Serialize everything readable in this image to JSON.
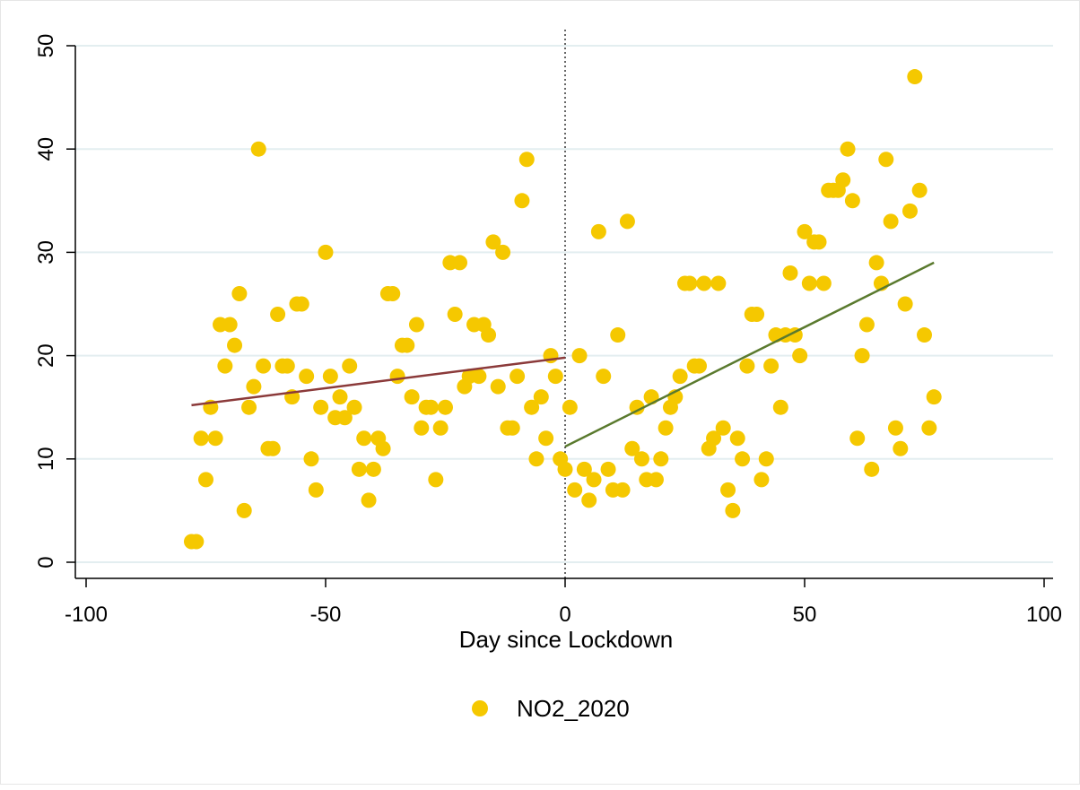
{
  "chart_data": {
    "type": "scatter",
    "title": "",
    "xlabel": "Day since Lockdown",
    "ylabel": "",
    "xlim": [
      -100,
      100
    ],
    "ylim": [
      0,
      50
    ],
    "xticks": [
      -100,
      -50,
      0,
      50,
      100
    ],
    "yticks": [
      0,
      10,
      20,
      30,
      40,
      50
    ],
    "xtick_labels": [
      "-100",
      "-50",
      "0",
      "50",
      "100"
    ],
    "ytick_labels": [
      "0",
      "10",
      "20",
      "30",
      "40",
      "50"
    ],
    "grid": "horizontal",
    "legend_position": "bottom",
    "series": [
      {
        "name": "NO2_2020",
        "color": "#f5c800",
        "points": [
          [
            -78,
            2
          ],
          [
            -77,
            2
          ],
          [
            -76,
            12
          ],
          [
            -75,
            8
          ],
          [
            -74,
            15
          ],
          [
            -73,
            12
          ],
          [
            -72,
            23
          ],
          [
            -71,
            19
          ],
          [
            -70,
            23
          ],
          [
            -69,
            21
          ],
          [
            -68,
            26
          ],
          [
            -67,
            5
          ],
          [
            -66,
            15
          ],
          [
            -65,
            17
          ],
          [
            -64,
            40
          ],
          [
            -63,
            19
          ],
          [
            -62,
            11
          ],
          [
            -61,
            11
          ],
          [
            -60,
            24
          ],
          [
            -59,
            19
          ],
          [
            -58,
            19
          ],
          [
            -57,
            16
          ],
          [
            -56,
            25
          ],
          [
            -55,
            25
          ],
          [
            -54,
            18
          ],
          [
            -53,
            10
          ],
          [
            -52,
            7
          ],
          [
            -51,
            15
          ],
          [
            -50,
            30
          ],
          [
            -49,
            18
          ],
          [
            -48,
            14
          ],
          [
            -47,
            16
          ],
          [
            -46,
            14
          ],
          [
            -45,
            19
          ],
          [
            -44,
            15
          ],
          [
            -43,
            9
          ],
          [
            -42,
            12
          ],
          [
            -41,
            6
          ],
          [
            -40,
            9
          ],
          [
            -39,
            12
          ],
          [
            -38,
            11
          ],
          [
            -37,
            26
          ],
          [
            -36,
            26
          ],
          [
            -35,
            18
          ],
          [
            -34,
            21
          ],
          [
            -33,
            21
          ],
          [
            -32,
            16
          ],
          [
            -31,
            23
          ],
          [
            -30,
            13
          ],
          [
            -29,
            15
          ],
          [
            -28,
            15
          ],
          [
            -27,
            8
          ],
          [
            -26,
            13
          ],
          [
            -25,
            15
          ],
          [
            -24,
            29
          ],
          [
            -23,
            24
          ],
          [
            -22,
            29
          ],
          [
            -21,
            17
          ],
          [
            -20,
            18
          ],
          [
            -19,
            23
          ],
          [
            -18,
            18
          ],
          [
            -17,
            23
          ],
          [
            -16,
            22
          ],
          [
            -15,
            31
          ],
          [
            -14,
            17
          ],
          [
            -13,
            30
          ],
          [
            -12,
            13
          ],
          [
            -11,
            13
          ],
          [
            -10,
            18
          ],
          [
            -9,
            35
          ],
          [
            -8,
            39
          ],
          [
            -7,
            15
          ],
          [
            -6,
            10
          ],
          [
            -5,
            16
          ],
          [
            -4,
            12
          ],
          [
            -3,
            20
          ],
          [
            -2,
            18
          ],
          [
            -1,
            10
          ],
          [
            0,
            9
          ],
          [
            1,
            15
          ],
          [
            2,
            7
          ],
          [
            3,
            20
          ],
          [
            4,
            9
          ],
          [
            5,
            6
          ],
          [
            6,
            8
          ],
          [
            7,
            32
          ],
          [
            8,
            18
          ],
          [
            9,
            9
          ],
          [
            10,
            7
          ],
          [
            11,
            22
          ],
          [
            12,
            7
          ],
          [
            13,
            33
          ],
          [
            14,
            11
          ],
          [
            15,
            15
          ],
          [
            16,
            10
          ],
          [
            17,
            8
          ],
          [
            18,
            16
          ],
          [
            19,
            8
          ],
          [
            20,
            10
          ],
          [
            21,
            13
          ],
          [
            22,
            15
          ],
          [
            23,
            16
          ],
          [
            24,
            18
          ],
          [
            25,
            27
          ],
          [
            26,
            27
          ],
          [
            27,
            19
          ],
          [
            28,
            19
          ],
          [
            29,
            27
          ],
          [
            30,
            11
          ],
          [
            31,
            12
          ],
          [
            32,
            27
          ],
          [
            33,
            13
          ],
          [
            34,
            7
          ],
          [
            35,
            5
          ],
          [
            36,
            12
          ],
          [
            37,
            10
          ],
          [
            38,
            19
          ],
          [
            39,
            24
          ],
          [
            40,
            24
          ],
          [
            41,
            8
          ],
          [
            42,
            10
          ],
          [
            43,
            19
          ],
          [
            44,
            22
          ],
          [
            45,
            15
          ],
          [
            46,
            22
          ],
          [
            47,
            28
          ],
          [
            48,
            22
          ],
          [
            49,
            20
          ],
          [
            50,
            32
          ],
          [
            51,
            27
          ],
          [
            52,
            31
          ],
          [
            53,
            31
          ],
          [
            54,
            27
          ],
          [
            55,
            36
          ],
          [
            56,
            36
          ],
          [
            57,
            36
          ],
          [
            58,
            37
          ],
          [
            59,
            40
          ],
          [
            60,
            35
          ],
          [
            61,
            12
          ],
          [
            62,
            20
          ],
          [
            63,
            23
          ],
          [
            64,
            9
          ],
          [
            65,
            29
          ],
          [
            66,
            27
          ],
          [
            67,
            39
          ],
          [
            68,
            33
          ],
          [
            69,
            13
          ],
          [
            70,
            11
          ],
          [
            71,
            25
          ],
          [
            72,
            34
          ],
          [
            73,
            47
          ],
          [
            74,
            36
          ],
          [
            75,
            22
          ],
          [
            76,
            13
          ],
          [
            77,
            16
          ]
        ]
      }
    ],
    "fit_lines": [
      {
        "color": "#8b3a3a",
        "x": [
          -78,
          0
        ],
        "y": [
          15.2,
          19.8
        ]
      },
      {
        "color": "#5a7a2e",
        "x": [
          0,
          77
        ],
        "y": [
          11.2,
          29.0
        ]
      }
    ],
    "reference_lines": [
      {
        "axis": "x",
        "value": 0,
        "style": "dotted",
        "color": "#000000"
      }
    ]
  }
}
